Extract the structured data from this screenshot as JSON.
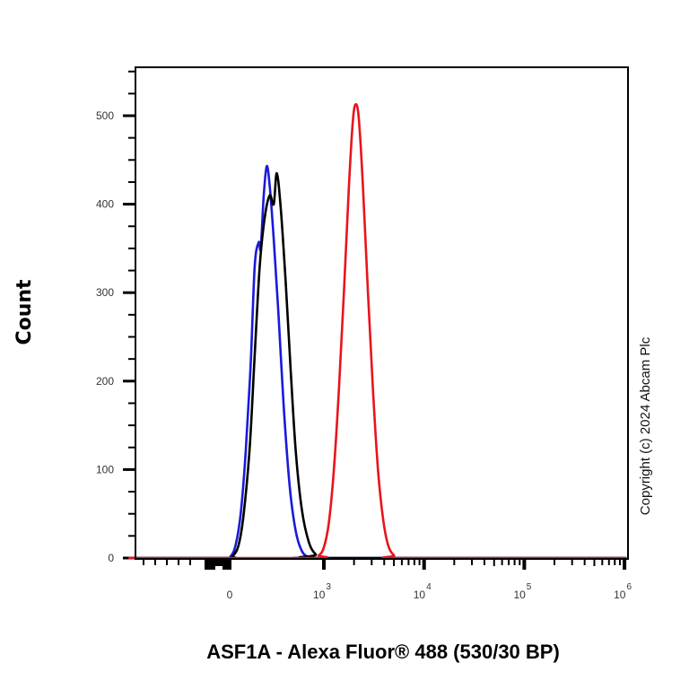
{
  "chart_data": {
    "type": "line",
    "title": "",
    "xlabel": "ASF1A - Alexa Fluor® 488 (530/30 BP)",
    "ylabel": "Count",
    "x_scale": "biexponential (logicle)",
    "x_ticks": [
      {
        "label": "0",
        "exp": "",
        "pos": 2.05
      },
      {
        "label": "10",
        "exp": "3",
        "pos": 3
      },
      {
        "label": "10",
        "exp": "4",
        "pos": 4
      },
      {
        "label": "10",
        "exp": "5",
        "pos": 5
      },
      {
        "label": "10",
        "exp": "6",
        "pos": 6
      }
    ],
    "y_ticks": [
      0,
      100,
      200,
      300,
      400,
      500
    ],
    "ylim": [
      0,
      555
    ],
    "xlim_pos": [
      1.05,
      6.02
    ],
    "grid": false,
    "legend": "none",
    "series": [
      {
        "name": "blue",
        "color": "#1a1adb",
        "points": [
          [
            1.05,
            0
          ],
          [
            2.0,
            0
          ],
          [
            2.07,
            2
          ],
          [
            2.12,
            15
          ],
          [
            2.17,
            50
          ],
          [
            2.22,
            120
          ],
          [
            2.27,
            220
          ],
          [
            2.31,
            330
          ],
          [
            2.35,
            357
          ],
          [
            2.37,
            350
          ],
          [
            2.4,
            410
          ],
          [
            2.43,
            443
          ],
          [
            2.46,
            420
          ],
          [
            2.5,
            360
          ],
          [
            2.55,
            270
          ],
          [
            2.6,
            170
          ],
          [
            2.66,
            80
          ],
          [
            2.72,
            30
          ],
          [
            2.78,
            8
          ],
          [
            2.85,
            1
          ],
          [
            2.95,
            0
          ],
          [
            6.02,
            0
          ]
        ]
      },
      {
        "name": "black",
        "color": "#000000",
        "points": [
          [
            1.05,
            0
          ],
          [
            2.03,
            0
          ],
          [
            2.09,
            2
          ],
          [
            2.15,
            15
          ],
          [
            2.2,
            50
          ],
          [
            2.26,
            125
          ],
          [
            2.31,
            230
          ],
          [
            2.36,
            330
          ],
          [
            2.41,
            385
          ],
          [
            2.46,
            410
          ],
          [
            2.5,
            400
          ],
          [
            2.53,
            435
          ],
          [
            2.57,
            395
          ],
          [
            2.62,
            310
          ],
          [
            2.67,
            210
          ],
          [
            2.72,
            120
          ],
          [
            2.78,
            55
          ],
          [
            2.85,
            18
          ],
          [
            2.92,
            4
          ],
          [
            3.0,
            0
          ],
          [
            6.02,
            0
          ]
        ]
      },
      {
        "name": "red",
        "color": "#e8141c",
        "points": [
          [
            1.05,
            0
          ],
          [
            2.88,
            0
          ],
          [
            2.95,
            3
          ],
          [
            3.0,
            12
          ],
          [
            3.05,
            40
          ],
          [
            3.1,
            100
          ],
          [
            3.15,
            190
          ],
          [
            3.2,
            300
          ],
          [
            3.25,
            420
          ],
          [
            3.29,
            495
          ],
          [
            3.32,
            513
          ],
          [
            3.35,
            495
          ],
          [
            3.39,
            420
          ],
          [
            3.44,
            300
          ],
          [
            3.49,
            190
          ],
          [
            3.54,
            100
          ],
          [
            3.59,
            45
          ],
          [
            3.64,
            15
          ],
          [
            3.7,
            3
          ],
          [
            3.78,
            0
          ],
          [
            6.02,
            0
          ]
        ]
      }
    ]
  },
  "copyright": "Copyright (c) 2024 Abcam Plc"
}
